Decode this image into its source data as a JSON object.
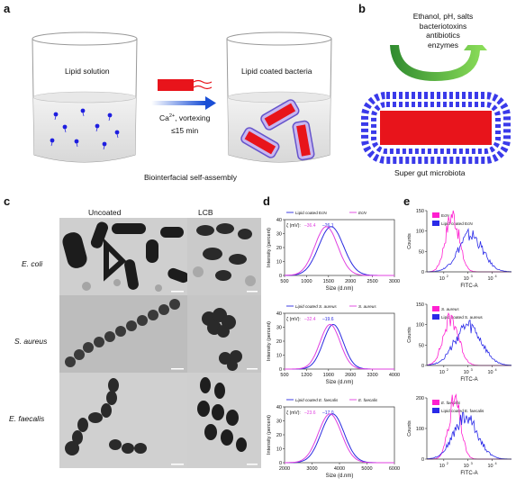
{
  "panel_labels": {
    "a": "a",
    "b": "b",
    "c": "c",
    "d": "d",
    "e": "e"
  },
  "panel_a": {
    "beaker1_label": "Lipid solution",
    "beaker2_label": "Lipid coated bacteria",
    "ca_text": "Ca",
    "ca_sup": "2+",
    "ca_rest": ", vortexing",
    "time_text": "≤15 min",
    "caption": "Biointerfacial self-assembly"
  },
  "panel_b": {
    "lines": [
      "Ethanol, pH, salts",
      "bacteriotoxins",
      "antibiotics",
      "enzymes"
    ],
    "caption": "Super gut microbiota"
  },
  "panel_c": {
    "col_headers": [
      "Uncoated",
      "LCB"
    ],
    "row_labels": [
      "E. coli",
      "S. aureus",
      "E. faecalis"
    ]
  },
  "chart_data": [
    {
      "type": "line",
      "panel": "d",
      "subpanel": 1,
      "xlabel": "Size (d.nm)",
      "ylabel": "Intensity (percent)",
      "xlim": [
        500,
        3000
      ],
      "ylim": [
        0,
        40
      ],
      "xticks": [
        "500",
        "1000",
        "1500",
        "2000",
        "2500",
        "3000"
      ],
      "yticks": [
        "0",
        "10",
        "20",
        "30",
        "40"
      ],
      "zeta_prefix": "ζ (mV):",
      "zeta_values": [
        "–36.4",
        "–26.1"
      ],
      "series": [
        {
          "name": "Lipid coated EcN",
          "color": "#2a2ae0",
          "peak": 1560,
          "sigma": 280,
          "height": 35
        },
        {
          "name": "EcN",
          "color": "#e040e0",
          "peak": 1450,
          "sigma": 260,
          "height": 35
        }
      ]
    },
    {
      "type": "line",
      "panel": "d",
      "subpanel": 2,
      "xlabel": "Size (d.nm)",
      "ylabel": "Intensity (percent)",
      "xlim": [
        500,
        4000
      ],
      "ylim": [
        0,
        40
      ],
      "xticks": [
        "500",
        "1200",
        "1900",
        "2600",
        "3300",
        "4000"
      ],
      "yticks": [
        "0",
        "10",
        "20",
        "30",
        "40"
      ],
      "zeta_prefix": "ζ (mV):",
      "zeta_values": [
        "–32.4",
        "–19.6"
      ],
      "series": [
        {
          "name": "Lipid coated S. aureus",
          "color": "#2a2ae0",
          "peak": 2050,
          "sigma": 320,
          "height": 32
        },
        {
          "name": "S. aureus",
          "color": "#e040e0",
          "peak": 1950,
          "sigma": 320,
          "height": 32
        }
      ]
    },
    {
      "type": "line",
      "panel": "d",
      "subpanel": 3,
      "xlabel": "Size (d.nm)",
      "ylabel": "Intensity (percent)",
      "xlim": [
        2000,
        6000
      ],
      "ylim": [
        0,
        40
      ],
      "xticks": [
        "2000",
        "3000",
        "4000",
        "5000",
        "6000"
      ],
      "yticks": [
        "0",
        "10",
        "20",
        "30",
        "40"
      ],
      "zeta_prefix": "ζ (mV):",
      "zeta_values": [
        "–23.6",
        "–17.0"
      ],
      "series": [
        {
          "name": "Lipid coated E. faecalis",
          "color": "#2a2ae0",
          "peak": 3750,
          "sigma": 420,
          "height": 35
        },
        {
          "name": "E. faecalis",
          "color": "#e040e0",
          "peak": 3650,
          "sigma": 420,
          "height": 35
        }
      ]
    },
    {
      "type": "area",
      "panel": "e",
      "subpanel": 1,
      "xlabel": "FITC-A",
      "ylabel": "Counts",
      "ylim": [
        0,
        150
      ],
      "yticks": [
        "0",
        "50",
        "100",
        "150"
      ],
      "xticks_base": "10",
      "xticks_exp": [
        "2",
        "3",
        "4"
      ],
      "series": [
        {
          "name": "EcN",
          "color": "#ff1fd0",
          "peak_log": 2.35,
          "sigma_log": 0.28,
          "height": 140
        },
        {
          "name": "Lipid coated EcN",
          "color": "#2a2ae8",
          "peak_log": 3.1,
          "sigma_log": 0.5,
          "height": 90
        }
      ]
    },
    {
      "type": "area",
      "panel": "e",
      "subpanel": 2,
      "xlabel": "FITC-A",
      "ylabel": "Counts",
      "ylim": [
        0,
        150
      ],
      "yticks": [
        "0",
        "50",
        "100",
        "150"
      ],
      "xticks_base": "10",
      "xticks_exp": [
        "2",
        "3",
        "4"
      ],
      "series": [
        {
          "name": "S. aureus",
          "color": "#ff1fd0",
          "peak_log": 2.3,
          "sigma_log": 0.32,
          "height": 115
        },
        {
          "name": "Lipid coated S. aureus",
          "color": "#2a2ae8",
          "peak_log": 3.0,
          "sigma_log": 0.55,
          "height": 95
        }
      ]
    },
    {
      "type": "area",
      "panel": "e",
      "subpanel": 3,
      "xlabel": "FITC-A",
      "ylabel": "Counts",
      "ylim": [
        0,
        220
      ],
      "yticks": [
        "0",
        "100",
        "200"
      ],
      "xticks_base": "10",
      "xticks_exp": [
        "2",
        "3",
        "4"
      ],
      "series": [
        {
          "name": "E. faecalis",
          "color": "#ff1fd0",
          "peak_log": 2.45,
          "sigma_log": 0.25,
          "height": 210
        },
        {
          "name": "Lipid coated E. faecalis",
          "color": "#2a2ae8",
          "peak_log": 2.9,
          "sigma_log": 0.5,
          "height": 150
        }
      ]
    }
  ]
}
